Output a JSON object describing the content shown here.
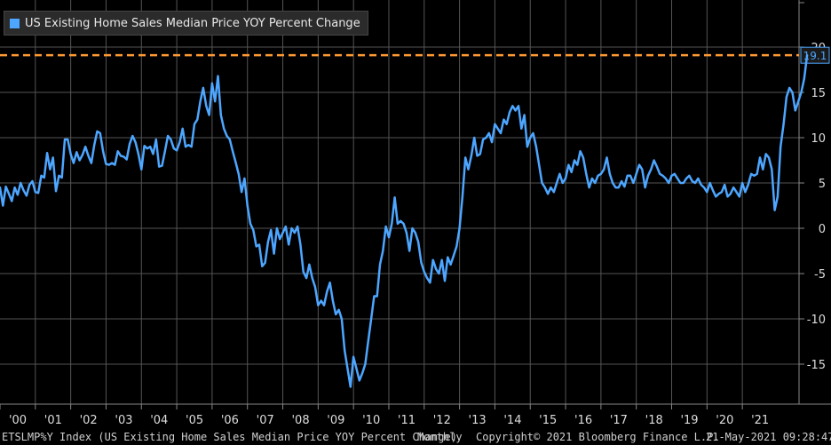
{
  "colors": {
    "series": "#4da6ff",
    "reference": "#ff9933",
    "grid": "#555555",
    "axis_text": "#dddddd"
  },
  "footer": {
    "ticker": "ETSLMP%Y Index (US Existing Home Sales Median Price YOY Percent Change)",
    "frequency": "Monthly",
    "copyright": "Copyright© 2021 Bloomberg Finance L.P.",
    "timestamp": "21-May-2021 09:28:47"
  },
  "chart_data": {
    "type": "line",
    "title": "",
    "xlabel": "",
    "ylabel": "",
    "grid": true,
    "legend_position": "top-left",
    "xlim": [
      2000.0,
      2021.8
    ],
    "ylim": [
      -18.5,
      25
    ],
    "y_ticks": [
      -15,
      -10,
      -5,
      0,
      5,
      10,
      15,
      20
    ],
    "y_tick_labels": [
      "-15",
      "-10",
      "-5",
      "0",
      "5",
      "10",
      "15",
      "20"
    ],
    "x_ticks": [
      2000,
      2001,
      2002,
      2003,
      2004,
      2005,
      2006,
      2007,
      2008,
      2009,
      2010,
      2011,
      2012,
      2013,
      2014,
      2015,
      2016,
      2017,
      2018,
      2019,
      2020,
      2021
    ],
    "x_tick_labels": [
      "'00",
      "'01",
      "'02",
      "'03",
      "'04",
      "'05",
      "'06",
      "'07",
      "'08",
      "'09",
      "'10",
      "'11",
      "'12",
      "'13",
      "'14",
      "'15",
      "'16",
      "'17",
      "'18",
      "'19",
      "'20",
      "'21"
    ],
    "last_value": 19.1,
    "last_value_label": "19.1",
    "series": [
      {
        "name": "US Existing Home Sales Median Price YOY Percent Change",
        "x_start": 2000.0,
        "x_step": 0.08333,
        "values": [
          4.5,
          2.5,
          4.6,
          3.8,
          3.0,
          4.5,
          3.7,
          5.0,
          4.2,
          3.6,
          4.8,
          5.2,
          4.0,
          3.9,
          5.8,
          5.6,
          8.3,
          6.5,
          7.8,
          4.1,
          5.8,
          5.6,
          9.8,
          9.8,
          8.2,
          7.2,
          8.4,
          7.5,
          8.1,
          9.0,
          8.0,
          7.2,
          9.2,
          10.7,
          10.5,
          8.5,
          7.1,
          7.0,
          7.2,
          7.0,
          8.5,
          8.0,
          7.9,
          7.6,
          9.3,
          10.2,
          9.5,
          8.2,
          6.5,
          9.1,
          8.8,
          9.0,
          8.2,
          9.8,
          6.8,
          6.9,
          8.5,
          10.2,
          9.8,
          8.8,
          8.6,
          9.5,
          11.0,
          9.0,
          9.2,
          9.0,
          11.5,
          12.0,
          14.0,
          15.5,
          13.5,
          12.5,
          16.0,
          14.0,
          16.8,
          12.5,
          11.0,
          10.2,
          9.8,
          8.5,
          7.3,
          6.0,
          4.0,
          5.5,
          2.5,
          0.5,
          -0.2,
          -2.0,
          -1.8,
          -4.2,
          -3.8,
          -1.5,
          -0.2,
          -2.8,
          0.0,
          -1.2,
          -0.5,
          0.2,
          -1.8,
          0.0,
          -0.5,
          0.2,
          -1.8,
          -4.8,
          -5.5,
          -4.0,
          -5.5,
          -6.5,
          -8.5,
          -8.0,
          -8.5,
          -7.0,
          -6.0,
          -8.0,
          -9.5,
          -9.0,
          -10.0,
          -13.5,
          -15.5,
          -17.5,
          -14.2,
          -15.5,
          -16.8,
          -16.0,
          -15.0,
          -12.5,
          -10.0,
          -7.5,
          -7.5,
          -4.0,
          -2.5,
          0.2,
          -1.0,
          0.5,
          3.4,
          0.5,
          0.8,
          0.5,
          -0.5,
          -2.5,
          0.0,
          -0.5,
          -1.5,
          -3.8,
          -4.8,
          -5.5,
          -6.0,
          -3.5,
          -4.5,
          -5.0,
          -3.5,
          -5.8,
          -3.2,
          -4.0,
          -3.0,
          -2.0,
          0.0,
          3.5,
          7.8,
          6.5,
          8.0,
          10.0,
          8.0,
          8.2,
          9.8,
          10.0,
          10.5,
          9.5,
          11.5,
          11.0,
          10.5,
          12.0,
          11.5,
          12.8,
          13.5,
          13.0,
          13.5,
          11.0,
          12.5,
          9.0,
          10.0,
          10.5,
          9.0,
          7.0,
          5.0,
          4.5,
          3.8,
          4.5,
          4.0,
          5.0,
          6.0,
          5.0,
          5.5,
          7.0,
          6.2,
          7.5,
          7.0,
          8.5,
          7.8,
          6.0,
          4.5,
          5.5,
          5.0,
          5.8,
          6.0,
          6.5,
          7.8,
          6.0,
          5.0,
          4.5,
          4.5,
          5.2,
          4.6,
          5.8,
          5.8,
          5.0,
          6.0,
          7.0,
          6.5,
          4.5,
          5.8,
          6.5,
          7.5,
          6.8,
          6.0,
          5.8,
          5.5,
          5.0,
          5.8,
          6.0,
          5.5,
          5.0,
          5.0,
          5.5,
          5.8,
          5.2,
          5.0,
          5.5,
          4.8,
          4.5,
          4.0,
          5.0,
          4.2,
          3.5,
          3.8,
          4.0,
          4.8,
          3.5,
          3.8,
          4.5,
          4.0,
          3.5,
          5.0,
          4.0,
          4.8,
          6.0,
          5.8,
          6.0,
          7.8,
          6.5,
          8.2,
          7.8,
          6.5,
          2.0,
          3.5,
          9.0,
          11.5,
          14.5,
          15.5,
          15.0,
          13.0,
          14.0,
          15.0,
          16.5,
          19.1
        ]
      }
    ]
  }
}
